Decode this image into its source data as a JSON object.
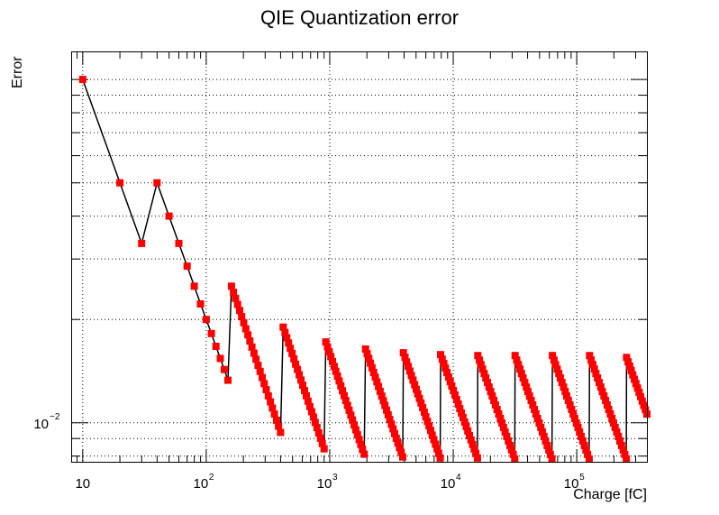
{
  "chart_data": {
    "type": "scatter",
    "title": "QIE Quantization error",
    "xlabel": "Charge [fC]",
    "ylabel": "Error",
    "x_scale": "log",
    "y_scale": "log",
    "xlim": [
      8.2,
      370000
    ],
    "ylim": [
      0.0077,
      0.12
    ],
    "grid": true,
    "x_tick_labels": [
      {
        "value": 10,
        "base": "10",
        "exp": ""
      },
      {
        "value": 100,
        "base": "10",
        "exp": "2"
      },
      {
        "value": 1000,
        "base": "10",
        "exp": "3"
      },
      {
        "value": 10000,
        "base": "10",
        "exp": "4"
      },
      {
        "value": 100000,
        "base": "10",
        "exp": "5"
      }
    ],
    "y_tick_labels": [
      {
        "value": 0.01,
        "base": "10",
        "exp": "−2"
      }
    ],
    "marker_color": "#ff0000",
    "line_color": "#000000",
    "series": [
      {
        "points": [
          [
            10,
            0.1
          ],
          [
            20,
            0.05
          ],
          [
            30,
            0.0333
          ],
          [
            40,
            0.05
          ],
          [
            50,
            0.04
          ],
          [
            60,
            0.0333
          ],
          [
            70,
            0.0286
          ],
          [
            80,
            0.025
          ],
          [
            90,
            0.0222
          ],
          [
            100,
            0.02
          ],
          [
            110,
            0.0182
          ],
          [
            120,
            0.0167
          ],
          [
            130,
            0.0154
          ],
          [
            140,
            0.0143
          ],
          [
            150,
            0.0133
          ]
        ],
        "segments": [
          {
            "x_start": 160,
            "x_end": 400,
            "y_start": 0.025,
            "y_end": 0.00938,
            "n": 25
          },
          {
            "x_start": 420,
            "x_end": 900,
            "y_start": 0.019,
            "y_end": 0.0084,
            "n": 24
          },
          {
            "x_start": 930,
            "x_end": 1900,
            "y_start": 0.0172,
            "y_end": 0.0081,
            "n": 24
          },
          {
            "x_start": 1950,
            "x_end": 3900,
            "y_start": 0.0164,
            "y_end": 0.00795,
            "n": 24
          },
          {
            "x_start": 3950,
            "x_end": 7850,
            "y_start": 0.016,
            "y_end": 0.0079,
            "n": 24
          },
          {
            "x_start": 7900,
            "x_end": 15700,
            "y_start": 0.0158,
            "y_end": 0.0079,
            "n": 24
          },
          {
            "x_start": 15800,
            "x_end": 31500,
            "y_start": 0.0157,
            "y_end": 0.00785,
            "n": 24
          },
          {
            "x_start": 31700,
            "x_end": 63000,
            "y_start": 0.0157,
            "y_end": 0.00785,
            "n": 24
          },
          {
            "x_start": 63500,
            "x_end": 126000,
            "y_start": 0.0157,
            "y_end": 0.00785,
            "n": 24
          },
          {
            "x_start": 127000,
            "x_end": 252000,
            "y_start": 0.0157,
            "y_end": 0.00785,
            "n": 24
          },
          {
            "x_start": 253000,
            "x_end": 370000,
            "y_start": 0.0155,
            "y_end": 0.0106,
            "n": 14
          }
        ]
      }
    ]
  }
}
